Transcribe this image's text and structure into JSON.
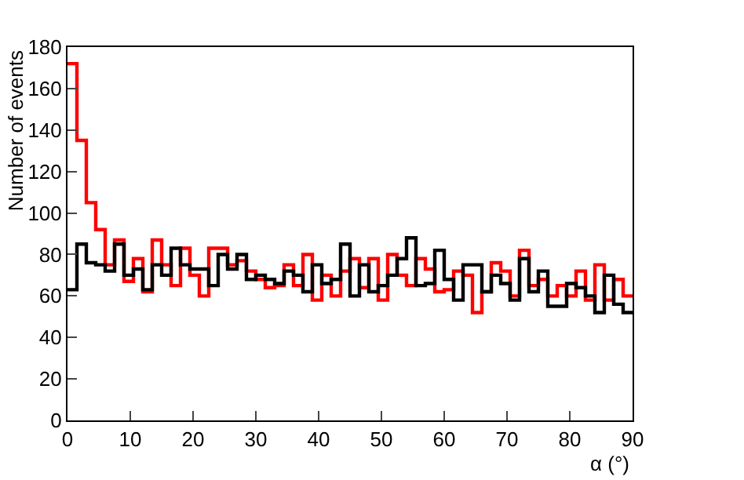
{
  "chart_data": {
    "type": "histogram",
    "xlabel": "α (°)",
    "ylabel": "Number of events",
    "bins": [
      0,
      1.5,
      3,
      4.5,
      6,
      7.5,
      9,
      10.5,
      12,
      13.5,
      15,
      16.5,
      18,
      19.5,
      21,
      22.5,
      24,
      25.5,
      27,
      28.5,
      30,
      31.5,
      33,
      34.5,
      36,
      37.5,
      39,
      40.5,
      42,
      43.5,
      45,
      46.5,
      48,
      49.5,
      51,
      52.5,
      54,
      55.5,
      57,
      58.5,
      60,
      61.5,
      63,
      64.5,
      66,
      67.5,
      69,
      70.5,
      72,
      73.5,
      75,
      76.5,
      78,
      79.5,
      81,
      82.5,
      84,
      85.5,
      87,
      88.5,
      90
    ],
    "series": [
      {
        "color": "#ff0000",
        "values": [
          172,
          135,
          105,
          92,
          75,
          87,
          67,
          78,
          62,
          87,
          75,
          65,
          83,
          70,
          60,
          83,
          83,
          75,
          77,
          72,
          68,
          64,
          65,
          75,
          65,
          80,
          58,
          70,
          60,
          72,
          78,
          64,
          78,
          58,
          80,
          70,
          65,
          78,
          73,
          62,
          63,
          72,
          70,
          52,
          62,
          76,
          72,
          60,
          82,
          65,
          68,
          60,
          65,
          60,
          72,
          58,
          75,
          58,
          68,
          60
        ]
      },
      {
        "color": "#000000",
        "values": [
          63,
          85,
          76,
          75,
          72,
          85,
          70,
          73,
          63,
          75,
          70,
          83,
          75,
          73,
          73,
          65,
          80,
          73,
          80,
          68,
          70,
          68,
          66,
          72,
          70,
          62,
          75,
          66,
          68,
          85,
          60,
          75,
          62,
          65,
          70,
          78,
          88,
          65,
          66,
          82,
          68,
          58,
          75,
          75,
          62,
          70,
          66,
          58,
          78,
          62,
          72,
          55,
          55,
          66,
          64,
          60,
          52,
          70,
          56,
          52
        ]
      }
    ],
    "xlim": [
      0,
      90
    ],
    "xticks": [
      0,
      10,
      20,
      30,
      40,
      50,
      60,
      70,
      80,
      90
    ],
    "ylim": [
      0,
      180
    ],
    "yticks": [
      0,
      20,
      40,
      60,
      80,
      100,
      120,
      140,
      160,
      180
    ]
  }
}
